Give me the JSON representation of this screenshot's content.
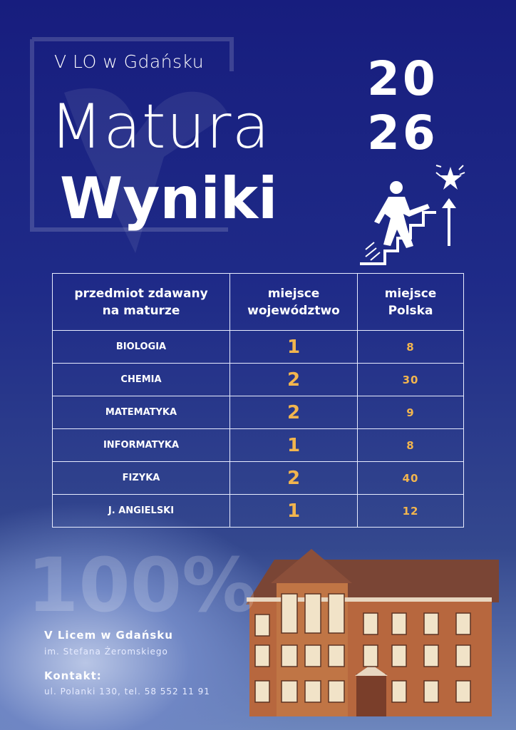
{
  "header": {
    "school": "V LO w Gdańsku",
    "title": "Matura",
    "subtitle": "Wyniki",
    "year": [
      "20",
      "26"
    ]
  },
  "table": {
    "columns": [
      "przedmiot zdawany na maturze",
      "miejsce województwo",
      "miejsce Polska"
    ],
    "rows": [
      [
        "BIOLOGIA",
        1,
        8
      ],
      [
        "CHEMIA",
        2,
        30
      ],
      [
        "MATEMATYKA",
        2,
        9
      ],
      [
        "INFORMATYKA",
        1,
        8
      ],
      [
        "FIZYKA",
        2,
        40
      ],
      [
        "J. ANGIELSKI",
        1,
        12
      ]
    ]
  },
  "watermark": "100%",
  "footer": {
    "name": "V Licem w Gdańsku",
    "patron": "im. Stefana Żeromskiego",
    "contact_label": "Kontakt:",
    "contact": "ul. Polanki 130, tel. 58 552 11 91"
  }
}
